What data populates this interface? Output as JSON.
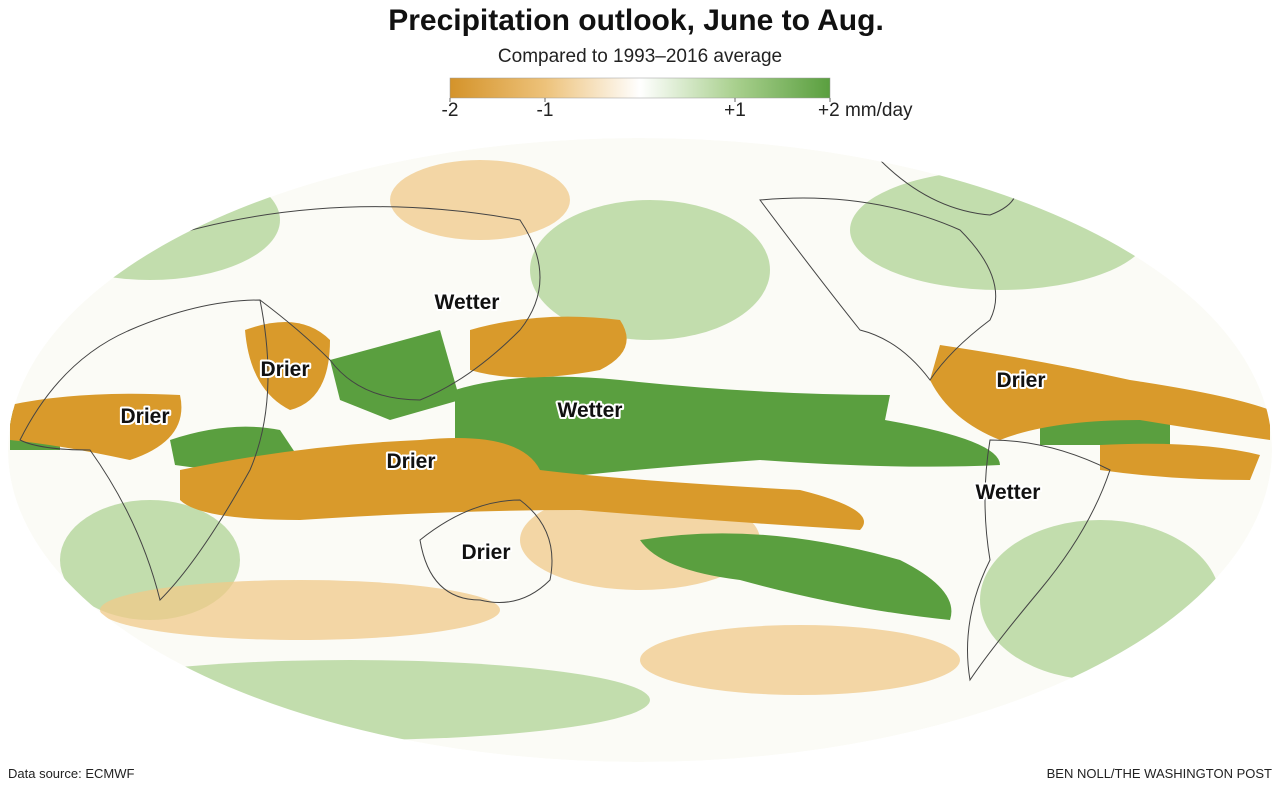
{
  "header": {
    "title": "Precipitation outlook, June to Aug.",
    "subtitle": "Compared to 1993–2016 average"
  },
  "legend": {
    "lim": [
      -2,
      2
    ],
    "ticks": [
      -2,
      -1,
      {
        "value": 1,
        "label": "+1"
      },
      {
        "value": 2,
        "label": "+2 mm/day"
      }
    ]
  },
  "labels": [
    "Wetter",
    "Drier",
    "Drier",
    "Drier",
    "Wetter",
    "Drier",
    "Drier",
    "Wetter"
  ],
  "footer": {
    "source": "Data source: ECMWF",
    "credit": "BEN NOLL/THE WASHINGTON POST"
  }
}
